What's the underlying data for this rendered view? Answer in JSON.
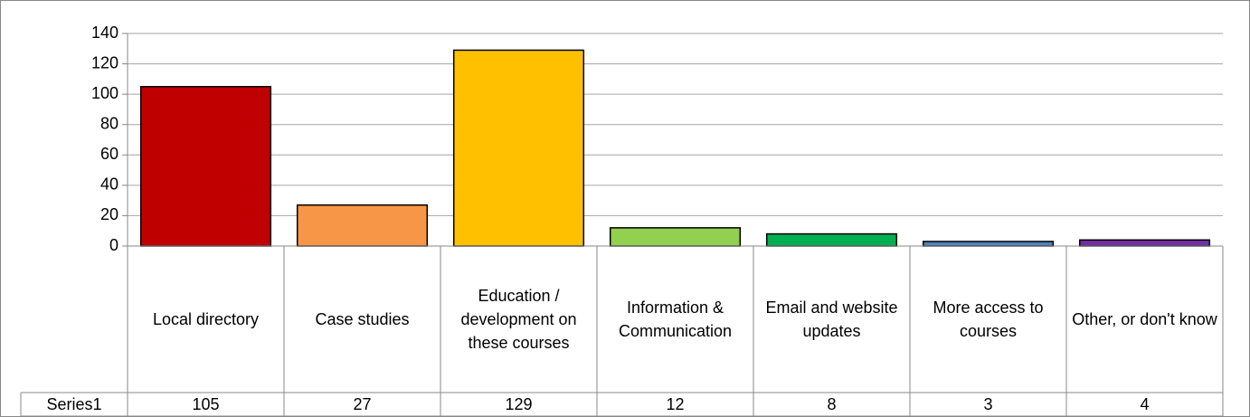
{
  "chart_data": {
    "type": "bar",
    "categories": [
      "Local directory",
      "Case studies",
      "Education / development on these courses",
      "Information & Communication",
      "Email and website updates",
      "More access to courses",
      "Other, or don't know"
    ],
    "series": [
      {
        "name": "Series1",
        "values": [
          105,
          27,
          129,
          12,
          8,
          3,
          4
        ],
        "colors": [
          "#c00000",
          "#f79646",
          "#ffc000",
          "#92d050",
          "#00b050",
          "#4f81bd",
          "#7030a0"
        ]
      }
    ],
    "ylim": [
      0,
      140
    ],
    "yticks": [
      0,
      20,
      40,
      60,
      80,
      100,
      120,
      140
    ],
    "grid": true,
    "data_table": true
  }
}
